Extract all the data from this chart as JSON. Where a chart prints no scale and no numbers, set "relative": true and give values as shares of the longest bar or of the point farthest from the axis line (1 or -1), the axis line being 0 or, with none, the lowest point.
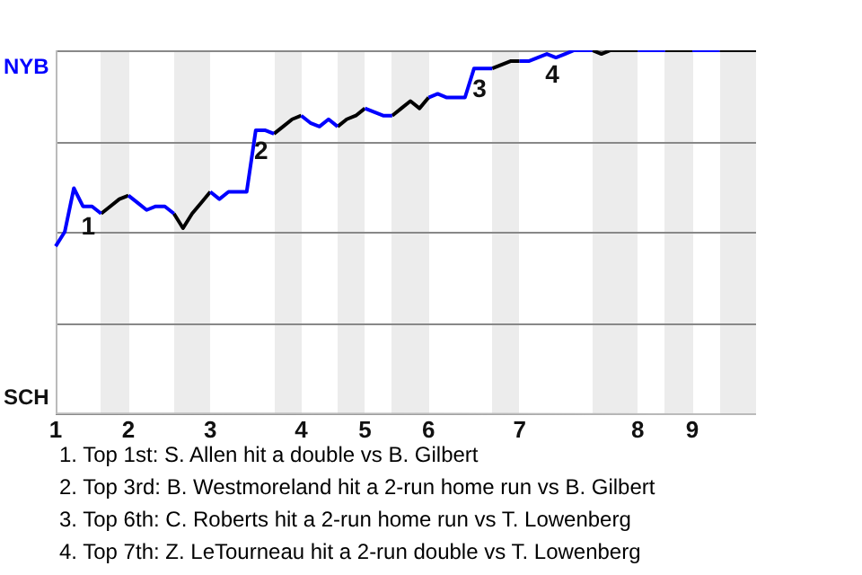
{
  "chart_data": {
    "type": "line",
    "relative": true,
    "categories": [
      "1",
      null,
      null,
      null,
      null,
      null,
      null,
      null,
      "2",
      null,
      null,
      null,
      null,
      null,
      null,
      null,
      null,
      "3",
      null,
      null,
      null,
      null,
      null,
      null,
      null,
      null,
      null,
      "4",
      null,
      null,
      null,
      null,
      null,
      null,
      "5",
      null,
      null,
      null,
      null,
      null,
      null,
      "6",
      null,
      null,
      null,
      null,
      null,
      null,
      null,
      null,
      null,
      "7",
      null,
      null,
      null,
      null,
      null,
      null,
      null,
      null,
      null,
      null,
      null,
      null,
      "8",
      null,
      null,
      null,
      null,
      null,
      "9",
      null,
      null,
      null,
      null,
      null,
      null,
      null
    ],
    "series": [
      {
        "color": "#0000ff",
        "values": [
          0.46,
          0.5,
          0.62,
          0.57,
          0.57,
          0.55,
          null,
          null,
          0.6,
          0.58,
          0.56,
          0.57,
          0.57,
          0.55,
          null,
          null,
          null,
          0.61,
          0.59,
          0.61,
          0.61,
          0.61,
          0.78,
          0.78,
          0.77,
          null,
          null,
          0.82,
          0.8,
          0.79,
          0.81,
          0.79,
          null,
          null,
          0.84,
          0.83,
          0.82,
          0.82,
          null,
          null,
          null,
          0.87,
          0.88,
          0.87,
          0.87,
          0.87,
          0.95,
          0.95,
          0.95,
          null,
          null,
          0.97,
          0.97,
          0.98,
          0.99,
          0.98,
          0.99,
          1,
          1,
          1,
          null,
          null,
          null,
          null,
          1,
          1,
          1,
          1,
          null,
          null,
          1,
          1,
          1,
          1,
          null,
          null,
          null,
          null
        ]
      },
      {
        "color": "#000000",
        "values": [
          null,
          null,
          null,
          null,
          null,
          0.55,
          0.57,
          0.59,
          0.6,
          null,
          null,
          null,
          null,
          0.55,
          0.51,
          0.55,
          0.58,
          0.61,
          null,
          null,
          null,
          null,
          null,
          null,
          0.77,
          0.79,
          0.81,
          0.82,
          null,
          null,
          null,
          0.79,
          0.81,
          0.82,
          0.84,
          null,
          null,
          0.82,
          0.84,
          0.86,
          0.84,
          0.87,
          null,
          null,
          null,
          null,
          null,
          null,
          0.95,
          0.96,
          0.97,
          0.97,
          null,
          null,
          null,
          null,
          null,
          null,
          null,
          1,
          0.99,
          1,
          1,
          1,
          1,
          null,
          null,
          1,
          1,
          1,
          1,
          null,
          null,
          1,
          1,
          1,
          1,
          1
        ]
      }
    ],
    "grid": "y",
    "legend": false,
    "marker": "none",
    "line_style": "solid",
    "annotations": [
      "NYB",
      "SCH",
      {
        "text": "1",
        "y": 0.57
      },
      {
        "text": "2",
        "y": 0.78
      },
      {
        "text": "3",
        "y": 0.95
      },
      {
        "text": "4",
        "y": 0.99
      },
      "1. Top 1st: S. Allen hit a double vs B. Gilbert",
      "2. Top 3rd: B. Westmoreland hit a 2-run home run vs B. Gilbert",
      "3. Top 6th: C. Roberts hit a 2-run home run vs T. Lowenberg",
      "4. Top 7th: Z. LeTourneau hit a 2-run double vs T. Lowenberg"
    ]
  }
}
